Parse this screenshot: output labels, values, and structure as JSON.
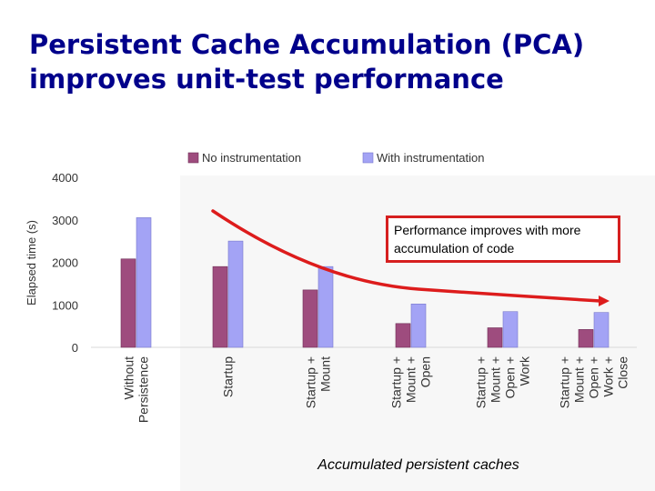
{
  "slide": {
    "title_line1": "Persistent Cache Accumulation (PCA)",
    "title_line2": "improves unit-test performance",
    "annotation": "Performance improves with more accumulation of code",
    "caption": "Accumulated persistent caches"
  },
  "colors": {
    "title": "#00008b",
    "no_instrumentation": "#9e4c7e",
    "with_instrumentation": "#a3a3f5",
    "arrow": "#dd1c1c",
    "box_border": "#d61f1f",
    "panel_background": "#f7f7f7"
  },
  "chart_data": {
    "type": "bar",
    "categories": [
      [
        "Without",
        "Persistence"
      ],
      [
        "Startup"
      ],
      [
        "Startup +",
        "Mount"
      ],
      [
        "Startup +",
        "Mount +",
        "Open"
      ],
      [
        "Startup +",
        "Mount +",
        "Open +",
        "Work"
      ],
      [
        "Startup +",
        "Mount +",
        "Open +",
        "Work +",
        "Close"
      ]
    ],
    "series": [
      {
        "name": "No instrumentation",
        "values": [
          2080,
          1900,
          1350,
          560,
          460,
          420
        ]
      },
      {
        "name": "With instrumentation",
        "values": [
          3050,
          2500,
          1900,
          1020,
          840,
          820
        ]
      }
    ],
    "ylabel": "Elapsed time (s)",
    "yticks": [
      0,
      1000,
      2000,
      3000,
      4000
    ],
    "ylim": [
      0,
      4000
    ],
    "legend_position": "top",
    "grid": false
  }
}
